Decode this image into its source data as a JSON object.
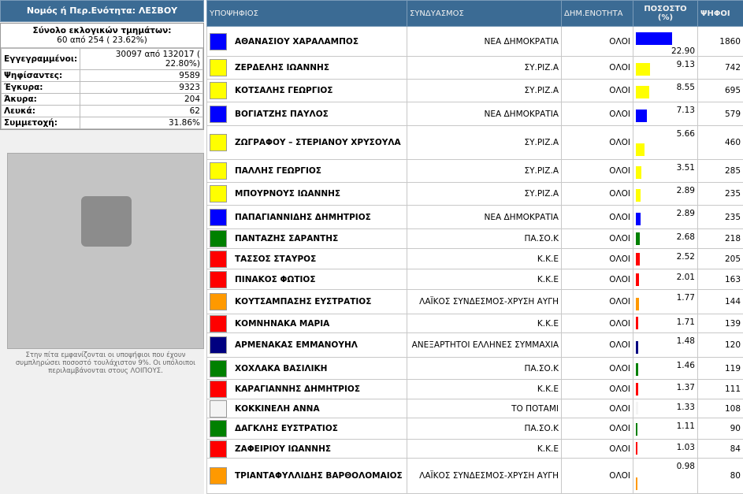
{
  "left_panel": {
    "header": "Νομός ή Περ.Ενότητα: ΛΕΣΒΟΥ",
    "sections_label": "Σύνολο εκλογικών τμημάτων:",
    "sections_value": "60 από 254 ( 23.62%)",
    "stats": [
      [
        "Εγγεγραμμένοι:",
        "30097 από 132017 ( 22.80%)"
      ],
      [
        "Ψηφίσαντες:",
        "9589"
      ],
      [
        "Έγκυρα:",
        "9323"
      ],
      [
        "Άκυρα:",
        "204"
      ],
      [
        "Λευκά:",
        "62"
      ],
      [
        "Συμμετοχή:",
        "31.86%"
      ]
    ],
    "note": "Στην πίτα εμφανίζονται οι υποψήφιοι που έχουν συμπληρώσει ποσοστό τουλάχιστον 9%. Οι υπόλοιποι περιλαμβάνονται στους ΛΟΙΠΟΥΣ."
  },
  "table": {
    "headers": [
      "ΥΠΟΨΗΦΙΟΣ",
      "ΣΥΝΔΥΑΣΜΟΣ",
      "ΔΗΜ.ΕΝΟΤΗΤΑ",
      "ΠΟΣΟΣΤΟ (%)",
      "ΨΗΦΟΙ"
    ],
    "rows": [
      {
        "candidate": "ΑΘΑΝΑΣΙΟΥ ΧΑΡΑΛΑΜΠΟΣ",
        "party": "ΝΕΑ ΔΗΜΟΚΡΑΤΙΑ",
        "unit": "ΟΛΟΙ",
        "percent": 22.9,
        "percent_label": "22.90",
        "votes": 1860,
        "color": "#0000ff"
      },
      {
        "candidate": "ΖΕΡΔΕΛΗΣ ΙΩΑΝΝΗΣ",
        "party": "ΣΥ.ΡΙΖ.Α",
        "unit": "ΟΛΟΙ",
        "percent": 9.13,
        "votes": 742,
        "color": "#ffff00"
      },
      {
        "candidate": "ΚΟΤΣΑΛΗΣ ΓΕΩΡΓΙΟΣ",
        "party": "ΣΥ.ΡΙΖ.Α",
        "unit": "ΟΛΟΙ",
        "percent": 8.55,
        "votes": 695,
        "color": "#ffff00"
      },
      {
        "candidate": "ΒΟΓΙΑΤΖΗΣ ΠΑΥΛΟΣ",
        "party": "ΝΕΑ ΔΗΜΟΚΡΑΤΙΑ",
        "unit": "ΟΛΟΙ",
        "percent": 7.13,
        "votes": 579,
        "color": "#0000ff"
      },
      {
        "candidate": "ΖΩΓΡΑΦΟΥ – ΣΤΕΡΙΑΝΟΥ ΧΡΥΣΟΥΛΑ",
        "party": "ΣΥ.ΡΙΖ.Α",
        "unit": "ΟΛΟΙ",
        "percent": 5.66,
        "votes": 460,
        "color": "#ffff00"
      },
      {
        "candidate": "ΠΑΛΛΗΣ ΓΕΩΡΓΙΟΣ",
        "party": "ΣΥ.ΡΙΖ.Α",
        "unit": "ΟΛΟΙ",
        "percent": 3.51,
        "votes": 285,
        "color": "#ffff00"
      },
      {
        "candidate": "ΜΠΟΥΡΝΟΥΣ ΙΩΑΝΝΗΣ",
        "party": "ΣΥ.ΡΙΖ.Α",
        "unit": "ΟΛΟΙ",
        "percent": 2.89,
        "votes": 235,
        "color": "#ffff00"
      },
      {
        "candidate": "ΠΑΠΑΓΙΑΝΝΙΔΗΣ ΔΗΜΗΤΡΙΟΣ",
        "party": "ΝΕΑ ΔΗΜΟΚΡΑΤΙΑ",
        "unit": "ΟΛΟΙ",
        "percent": 2.89,
        "votes": 235,
        "color": "#0000ff"
      },
      {
        "candidate": "ΠΑΝΤΑΖΗΣ ΣΑΡΑΝΤΗΣ",
        "party": "ΠΑ.ΣΟ.Κ",
        "unit": "ΟΛΟΙ",
        "percent": 2.68,
        "votes": 218,
        "color": "#008000"
      },
      {
        "candidate": "ΤΑΣΣΟΣ ΣΤΑΥΡΟΣ",
        "party": "Κ.Κ.Ε",
        "unit": "ΟΛΟΙ",
        "percent": 2.52,
        "votes": 205,
        "color": "#ff0000"
      },
      {
        "candidate": "ΠΙΝΑΚΟΣ ΦΩΤΙΟΣ",
        "party": "Κ.Κ.Ε",
        "unit": "ΟΛΟΙ",
        "percent": 2.01,
        "votes": 163,
        "color": "#ff0000"
      },
      {
        "candidate": "ΚΟΥΤΣΑΜΠΑΣΗΣ ΕΥΣΤΡΑΤΙΟΣ",
        "party": "ΛΑΪΚΟΣ ΣΥΝΔΕΣΜΟΣ-ΧΡΥΣΗ ΑΥΓΗ",
        "unit": "ΟΛΟΙ",
        "percent": 1.77,
        "votes": 144,
        "color": "#ff9900"
      },
      {
        "candidate": "ΚΟΜΝΗΝΑΚΑ ΜΑΡΙΑ",
        "party": "Κ.Κ.Ε",
        "unit": "ΟΛΟΙ",
        "percent": 1.71,
        "votes": 139,
        "color": "#ff0000"
      },
      {
        "candidate": "ΑΡΜΕΝΑΚΑΣ ΕΜΜΑΝΟΥΗΛ",
        "party": "ΑΝΕΞΑΡΤΗΤΟΙ ΕΛΛΗΝΕΣ ΣΥΜΜΑΧΙΑ",
        "unit": "ΟΛΟΙ",
        "percent": 1.48,
        "votes": 120,
        "color": "#000080"
      },
      {
        "candidate": "ΧΟΧΛΑΚΑ ΒΑΣΙΛΙΚΗ",
        "party": "ΠΑ.ΣΟ.Κ",
        "unit": "ΟΛΟΙ",
        "percent": 1.46,
        "votes": 119,
        "color": "#008000"
      },
      {
        "candidate": "ΚΑΡΑΓΙΑΝΝΗΣ ΔΗΜΗΤΡΙΟΣ",
        "party": "Κ.Κ.Ε",
        "unit": "ΟΛΟΙ",
        "percent": 1.37,
        "votes": 111,
        "color": "#ff0000"
      },
      {
        "candidate": "ΚΟΚΚΙΝΕΛΗ ΑΝΝΑ",
        "party": "ΤΟ ΠΟΤΑΜΙ",
        "unit": "ΟΛΟΙ",
        "percent": 1.33,
        "votes": 108,
        "color": "#f4f4f4"
      },
      {
        "candidate": "ΔΑΓΚΛΗΣ ΕΥΣΤΡΑΤΙΟΣ",
        "party": "ΠΑ.ΣΟ.Κ",
        "unit": "ΟΛΟΙ",
        "percent": 1.11,
        "votes": 90,
        "color": "#008000"
      },
      {
        "candidate": "ΖΑΦΕΙΡΙΟΥ ΙΩΑΝΝΗΣ",
        "party": "Κ.Κ.Ε",
        "unit": "ΟΛΟΙ",
        "percent": 1.03,
        "votes": 84,
        "color": "#ff0000"
      },
      {
        "candidate": "ΤΡΙΑΝΤΑΦΥΛΛΙΔΗΣ ΒΑΡΘΟΛΟΜΑΙΟΣ",
        "party": "ΛΑΪΚΟΣ ΣΥΝΔΕΣΜΟΣ-ΧΡΥΣΗ ΑΥΓΗ",
        "unit": "ΟΛΟΙ",
        "percent": 0.98,
        "votes": 80,
        "color": "#ff9900"
      }
    ]
  }
}
